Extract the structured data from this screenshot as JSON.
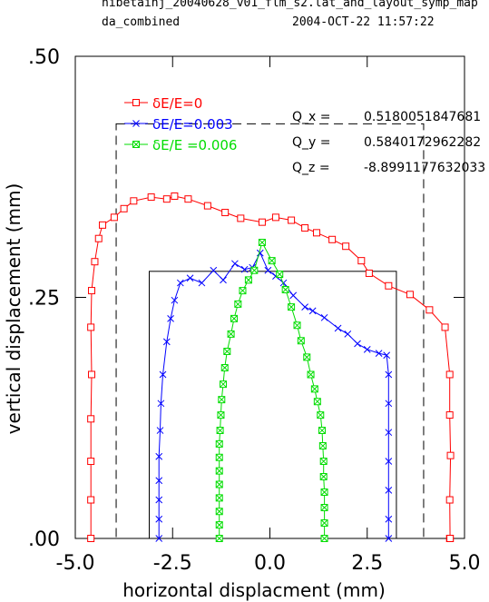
{
  "header": {
    "line1": "hibetainj_20040628_v01_flm_s2.lat_and_layout_symp_map",
    "line2_left": "da_combined",
    "line2_right": "2004-OCT-22  11:57:22"
  },
  "chart_data": {
    "type": "line",
    "title": "",
    "xlabel": "horizontal displacment (mm)",
    "ylabel": "vertical displacement (mm)",
    "xlim": [
      -5.0,
      5.0
    ],
    "ylim": [
      0.0,
      0.5
    ],
    "xticks": [
      "-5.0",
      "-2.5",
      "0.0",
      "2.5",
      "5.0"
    ],
    "yticks": [
      ".00",
      ".25",
      ".50"
    ],
    "grid": false,
    "legend_position": "top-left",
    "series": [
      {
        "name": "δE/E=0",
        "color": "#ff0000",
        "marker": "square",
        "x": [
          -4.6,
          -4.6,
          -4.6,
          -4.6,
          -4.58,
          -4.6,
          -4.58,
          -4.5,
          -4.4,
          -4.3,
          -4.0,
          -3.75,
          -3.5,
          -3.05,
          -2.65,
          -2.45,
          -2.1,
          -1.6,
          -1.15,
          -0.75,
          -0.2,
          0.15,
          0.55,
          0.9,
          1.2,
          1.6,
          1.95,
          2.35,
          2.55,
          3.05,
          3.6,
          4.1,
          4.5,
          4.62,
          4.62,
          4.64,
          4.62,
          4.63,
          4.62,
          4.63
        ],
        "y": [
          0.0,
          0.04,
          0.08,
          0.124,
          0.17,
          0.219,
          0.257,
          0.287,
          0.311,
          0.325,
          0.333,
          0.342,
          0.35,
          0.354,
          0.352,
          0.355,
          0.352,
          0.345,
          0.338,
          0.332,
          0.328,
          0.333,
          0.33,
          0.322,
          0.317,
          0.31,
          0.303,
          0.288,
          0.275,
          0.262,
          0.253,
          0.237,
          0.219,
          0.17,
          0.128,
          0.086,
          0.04,
          0.0,
          0.0,
          0.0
        ]
      },
      {
        "name": "δE/E=0.003",
        "color": "#0000ff",
        "marker": "x",
        "x": [
          -2.85,
          -2.85,
          -2.85,
          -2.85,
          -2.85,
          -2.82,
          -2.8,
          -2.75,
          -2.65,
          -2.55,
          -2.45,
          -2.3,
          -2.05,
          -1.75,
          -1.45,
          -1.2,
          -0.9,
          -0.65,
          -0.45,
          -0.25,
          -0.05,
          0.15,
          0.35,
          0.6,
          0.9,
          1.1,
          1.4,
          1.75,
          2.0,
          2.25,
          2.5,
          2.8,
          3.0,
          3.05,
          3.05,
          3.05,
          3.05,
          3.05,
          3.05,
          3.05
        ],
        "y": [
          0.0,
          0.02,
          0.04,
          0.06,
          0.085,
          0.112,
          0.14,
          0.17,
          0.204,
          0.228,
          0.247,
          0.265,
          0.27,
          0.265,
          0.278,
          0.268,
          0.285,
          0.279,
          0.281,
          0.296,
          0.278,
          0.272,
          0.265,
          0.252,
          0.24,
          0.236,
          0.229,
          0.218,
          0.212,
          0.202,
          0.196,
          0.192,
          0.19,
          0.17,
          0.14,
          0.11,
          0.08,
          0.05,
          0.02,
          0.0
        ]
      },
      {
        "name": "δE/E =0.006",
        "color": "#00dd00",
        "marker": "boxx",
        "x": [
          -1.3,
          -1.3,
          -1.3,
          -1.3,
          -1.3,
          -1.3,
          -1.3,
          -1.3,
          -1.28,
          -1.26,
          -1.24,
          -1.2,
          -1.16,
          -1.1,
          -1.0,
          -0.92,
          -0.82,
          -0.7,
          -0.55,
          -0.4,
          -0.2,
          0.05,
          0.25,
          0.4,
          0.55,
          0.7,
          0.8,
          0.95,
          1.05,
          1.15,
          1.22,
          1.3,
          1.34,
          1.36,
          1.38,
          1.38,
          1.4,
          1.4,
          1.4,
          1.4
        ],
        "y": [
          0.0,
          0.014,
          0.028,
          0.042,
          0.056,
          0.07,
          0.084,
          0.098,
          0.112,
          0.128,
          0.144,
          0.16,
          0.177,
          0.194,
          0.212,
          0.228,
          0.243,
          0.257,
          0.268,
          0.278,
          0.307,
          0.288,
          0.274,
          0.258,
          0.24,
          0.221,
          0.205,
          0.188,
          0.17,
          0.155,
          0.142,
          0.128,
          0.112,
          0.096,
          0.08,
          0.064,
          0.048,
          0.032,
          0.016,
          0.0
        ]
      }
    ],
    "annotations": [
      {
        "label": "Q_x  =",
        "value": "0.5180051847681"
      },
      {
        "label": "Q_y  =",
        "value": "0.5840172962282"
      },
      {
        "label": "Q_z  =",
        "value": "-8.8991177632033"
      }
    ]
  }
}
